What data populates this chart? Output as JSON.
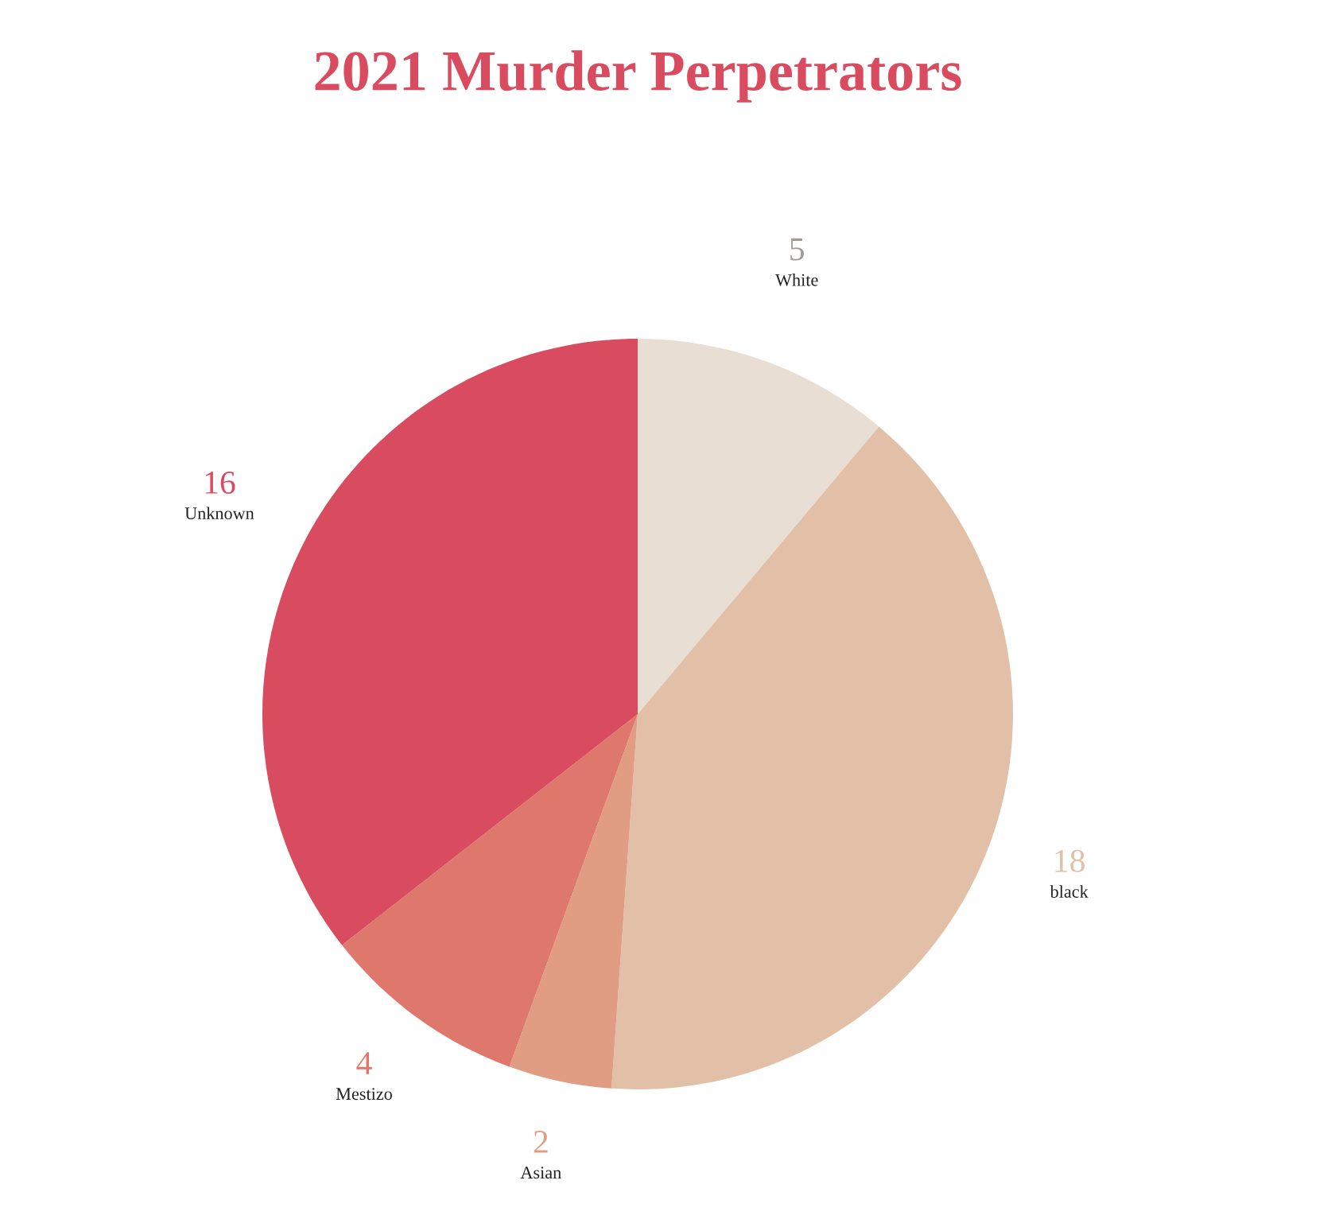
{
  "chart_data": {
    "type": "pie",
    "title": "2021 Murder Perpetrators",
    "categories": [
      "White",
      "black",
      "Asian",
      "Mestizo",
      "Unknown"
    ],
    "values": [
      5,
      18,
      2,
      4,
      16
    ],
    "colors": [
      "#e8ded4",
      "#e2c0a8",
      "#e19d84",
      "#df786c",
      "#d94b5f"
    ],
    "data_labels": true,
    "legend": false
  }
}
